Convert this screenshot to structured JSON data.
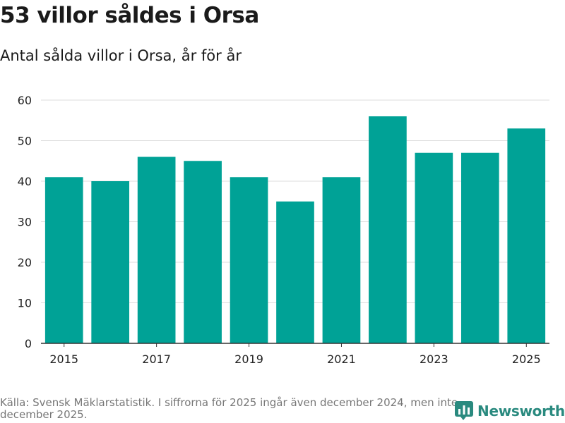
{
  "header": {
    "title": "53 villor såldes i Orsa",
    "subtitle": "Antal sålda villor i Orsa, år för år"
  },
  "colors": {
    "bar": "#00a296",
    "grid": "#dddddd",
    "axis": "#333333",
    "brand": "#2a8a7f"
  },
  "chart_data": {
    "type": "bar",
    "title": "53 villor såldes i Orsa",
    "subtitle": "Antal sålda villor i Orsa, år för år",
    "xlabel": "",
    "ylabel": "",
    "categories": [
      "2015",
      "2016",
      "2017",
      "2018",
      "2019",
      "2020",
      "2021",
      "2022",
      "2023",
      "2024",
      "2025"
    ],
    "values": [
      41,
      40,
      46,
      45,
      41,
      35,
      41,
      56,
      47,
      47,
      53
    ],
    "x_tick_labels": [
      "2015",
      "",
      "2017",
      "",
      "2019",
      "",
      "2021",
      "",
      "2023",
      "",
      "2025"
    ],
    "y_ticks": [
      0,
      10,
      20,
      30,
      40,
      50,
      60
    ],
    "ylim": [
      0,
      60
    ],
    "grid": true
  },
  "footer": {
    "source": "Källa: Svensk Mäklarstatistik. I siffrorna för 2025 ingår även december 2024, men inte december 2025.",
    "brand": "Newsworthy",
    "brand_icon": "bar-chart-logo-icon"
  }
}
